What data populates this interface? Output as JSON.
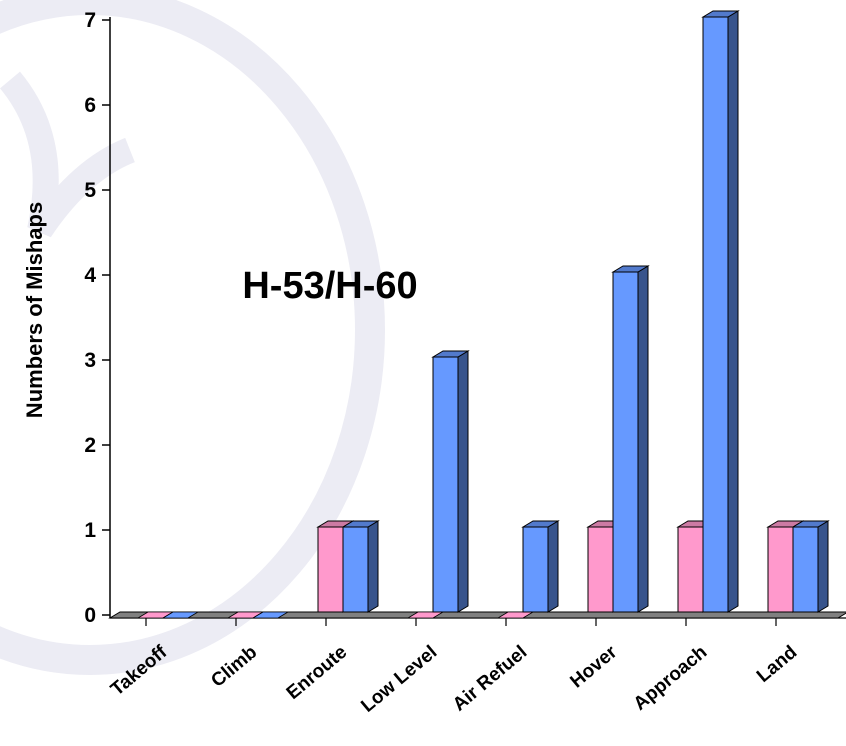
{
  "chart_data": {
    "type": "bar",
    "title": "H-53/H-60",
    "xlabel": "",
    "ylabel": "Numbers of Mishaps",
    "ylim": [
      0,
      7
    ],
    "yticks": [
      "0",
      "1",
      "2",
      "3",
      "4",
      "5",
      "6",
      "7"
    ],
    "categories": [
      "Takeoff",
      "Climb",
      "Enroute",
      "Low Level",
      "Air Refuel",
      "Hover",
      "Approach",
      "Land"
    ],
    "series": [
      {
        "values": [
          0,
          0,
          1,
          0,
          0,
          1,
          1,
          1
        ]
      },
      {
        "values": [
          0,
          0,
          1,
          3,
          1,
          4,
          7,
          1
        ]
      }
    ],
    "legend": "none",
    "grid": false,
    "style": "3d-bar"
  },
  "colors": {
    "series_0": "#ff99cc",
    "series_1": "#6699ff",
    "floor": "#808080",
    "watermark": "#ececf4"
  }
}
